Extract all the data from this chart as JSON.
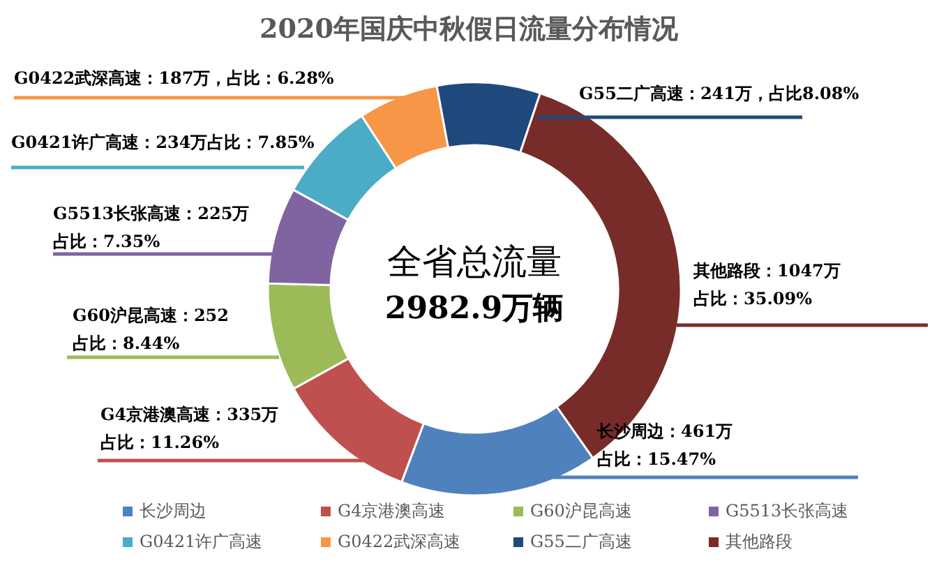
{
  "chart_data": {
    "type": "donut",
    "title": "2020年国庆中秋假日流量分布情况",
    "categories": [
      "长沙周边",
      "G4京港澳高速",
      "G60沪昆高速",
      "G5513长张高速",
      "G0421许广高速",
      "G0422武深高速",
      "G55二广高速",
      "其他路段"
    ],
    "values": [
      461,
      335,
      252,
      225,
      234,
      187,
      241,
      1047
    ],
    "colors": [
      "#4f81bd",
      "#c0504d",
      "#9bbb59",
      "#8064a2",
      "#4bacc6",
      "#f79646",
      "#1f497d",
      "#772c2a"
    ],
    "value_labels": [
      "长沙周边：461万占比：15.47%",
      "G4京港澳高速：335万占比：11.26%",
      "G60沪昆高速：252\n占比：8.44%",
      "G5513长张高速：225万占比：7.35%",
      "G0421许广高速：234万占比：7.85%",
      "G0422武深高速：187万，占比：6.28%",
      "G55二广高速：241万，占比8.08%",
      "其他路段：1047万占比：35.09%"
    ],
    "annotations": [
      "全省总流量",
      "2982.9万辆"
    ],
    "legend": "bottom"
  }
}
